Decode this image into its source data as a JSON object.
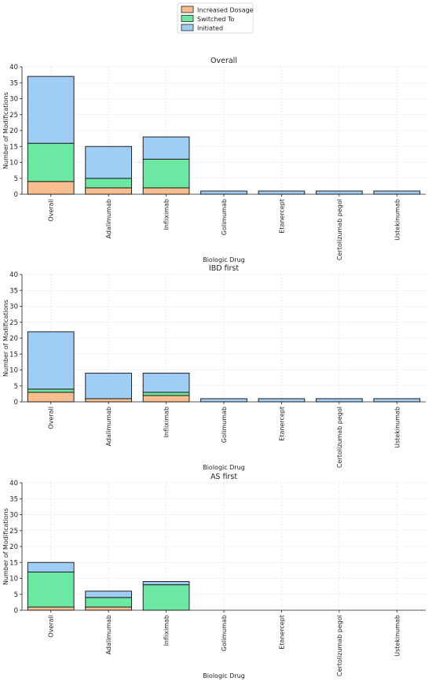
{
  "legend": {
    "placement": "top-center",
    "items": [
      {
        "label": "Increased Dosage",
        "color": "#f9be8f"
      },
      {
        "label": "Switched To",
        "color": "#6de8a2"
      },
      {
        "label": "Initiated",
        "color": "#9fcdf5"
      }
    ]
  },
  "chart_data": [
    {
      "type": "bar",
      "stacked": true,
      "title": "Overall",
      "xlabel": "Biologic Drug",
      "ylabel": "Number of Modifications",
      "ylim": [
        0,
        40
      ],
      "yticks": [
        0,
        5,
        10,
        15,
        20,
        25,
        30,
        35,
        40
      ],
      "grid": true,
      "categories": [
        "Overall",
        "Adalimumab",
        "Infliximab",
        "Golimumab",
        "Etanercept",
        "Certolizumab pegol",
        "Ustekinumab"
      ],
      "series": [
        {
          "name": "Increased Dosage",
          "values": [
            4,
            2,
            2,
            0,
            0,
            0,
            0
          ]
        },
        {
          "name": "Switched To",
          "values": [
            12,
            3,
            9,
            0,
            0,
            0,
            0
          ]
        },
        {
          "name": "Initiated",
          "values": [
            21,
            10,
            7,
            1,
            1,
            1,
            1
          ]
        }
      ]
    },
    {
      "type": "bar",
      "stacked": true,
      "title": "IBD first",
      "xlabel": "Biologic Drug",
      "ylabel": "Number of Modifications",
      "ylim": [
        0,
        40
      ],
      "yticks": [
        0,
        5,
        10,
        15,
        20,
        25,
        30,
        35,
        40
      ],
      "grid": true,
      "categories": [
        "Overall",
        "Adalimumab",
        "Infliximab",
        "Golimumab",
        "Etanercept",
        "Certolizumab pegol",
        "Ustekinumab"
      ],
      "series": [
        {
          "name": "Increased Dosage",
          "values": [
            3,
            1,
            2,
            0,
            0,
            0,
            0
          ]
        },
        {
          "name": "Switched To",
          "values": [
            1,
            0,
            1,
            0,
            0,
            0,
            0
          ]
        },
        {
          "name": "Initiated",
          "values": [
            18,
            8,
            6,
            1,
            1,
            1,
            1
          ]
        }
      ]
    },
    {
      "type": "bar",
      "stacked": true,
      "title": "AS first",
      "xlabel": "Biologic Drug",
      "ylabel": "Number of Modifications",
      "ylim": [
        0,
        40
      ],
      "yticks": [
        0,
        5,
        10,
        15,
        20,
        25,
        30,
        35,
        40
      ],
      "grid": true,
      "categories": [
        "Overall",
        "Adalimumab",
        "Infliximab",
        "Golimumab",
        "Etanercept",
        "Certolizumab pegol",
        "Ustekinumab"
      ],
      "series": [
        {
          "name": "Increased Dosage",
          "values": [
            1,
            1,
            0,
            0,
            0,
            0,
            0
          ]
        },
        {
          "name": "Switched To",
          "values": [
            11,
            3,
            8,
            0,
            0,
            0,
            0
          ]
        },
        {
          "name": "Initiated",
          "values": [
            3,
            2,
            1,
            0,
            0,
            0,
            0
          ]
        }
      ]
    }
  ]
}
